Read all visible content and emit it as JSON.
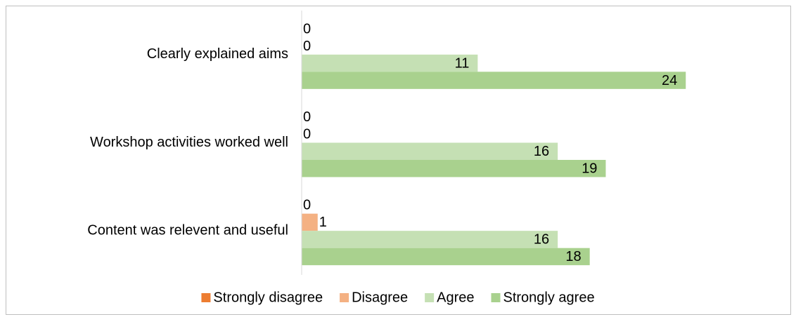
{
  "chart_data": {
    "type": "bar",
    "orientation": "horizontal",
    "categories": [
      "Clearly explained aims",
      "Workshop activities worked well",
      "Content was relevent and useful"
    ],
    "series": [
      {
        "name": "Strongly disagree",
        "color": "#ed7d31",
        "values": [
          0,
          0,
          0
        ]
      },
      {
        "name": "Disagree",
        "color": "#f4b183",
        "values": [
          0,
          0,
          1
        ]
      },
      {
        "name": "Agree",
        "color": "#c5e0b4",
        "values": [
          11,
          16,
          16
        ]
      },
      {
        "name": "Strongly agree",
        "color": "#a9d18e",
        "values": [
          24,
          19,
          18
        ]
      }
    ],
    "xlim": [
      0,
      25
    ],
    "legend": "bottom"
  }
}
